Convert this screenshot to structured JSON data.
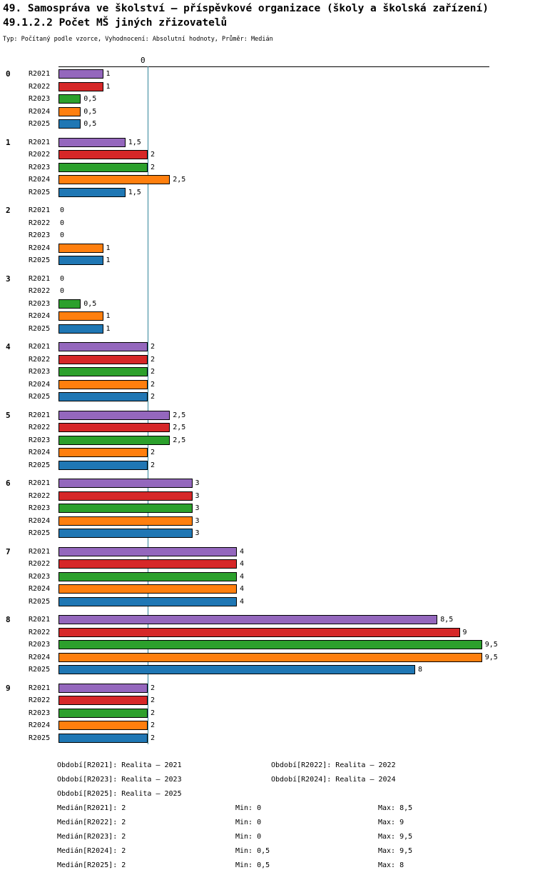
{
  "header": {
    "title": "49. Samospráva ve školství – příspěvkové organizace (školy a školská zařízení)",
    "subtitle": "49.1.2.2 Počet MŠ jiných zřizovatelů",
    "meta": "Typ: Počítaný podle vzorce, Vyhodnocení: Absolutní hodnoty, Průměr: Medián"
  },
  "chart_data": {
    "type": "bar",
    "orientation": "horizontal",
    "title": "49.1.2.2 Počet MŠ jiných zřizovatelů",
    "categories": [
      "0",
      "1",
      "2",
      "3",
      "4",
      "5",
      "6",
      "7",
      "8",
      "9"
    ],
    "series": [
      {
        "name": "R2021",
        "color": "#9467bd",
        "values": [
          1,
          1.5,
          0,
          0,
          2,
          2.5,
          3,
          4,
          8.5,
          2
        ],
        "labels": [
          "1",
          "1,5",
          "0",
          "0",
          "2",
          "2,5",
          "3",
          "4",
          "8,5",
          "2"
        ]
      },
      {
        "name": "R2022",
        "color": "#d62728",
        "values": [
          1,
          2,
          0,
          0,
          2,
          2.5,
          3,
          4,
          9,
          2
        ],
        "labels": [
          "1",
          "2",
          "0",
          "0",
          "2",
          "2,5",
          "3",
          "4",
          "9",
          "2"
        ]
      },
      {
        "name": "R2023",
        "color": "#2ca02c",
        "values": [
          0.5,
          2,
          0,
          0.5,
          2,
          2.5,
          3,
          4,
          9.5,
          2
        ],
        "labels": [
          "0,5",
          "2",
          "0",
          "0,5",
          "2",
          "2,5",
          "3",
          "4",
          "9,5",
          "2"
        ]
      },
      {
        "name": "R2024",
        "color": "#ff7f0e",
        "values": [
          0.5,
          2.5,
          1,
          1,
          2,
          2,
          3,
          4,
          9.5,
          2
        ],
        "labels": [
          "0,5",
          "2,5",
          "1",
          "1",
          "2",
          "2",
          "3",
          "4",
          "9,5",
          "2"
        ]
      },
      {
        "name": "R2025",
        "color": "#1f77b4",
        "values": [
          0.5,
          1.5,
          1,
          1,
          2,
          2,
          3,
          4,
          8,
          2
        ],
        "labels": [
          "0,5",
          "1,5",
          "1",
          "1",
          "2",
          "2",
          "3",
          "4",
          "8",
          "2"
        ]
      }
    ],
    "axis_top_label": "0",
    "median_line": {
      "value": 2,
      "color": "#31849b"
    },
    "xlim": [
      0,
      9.66
    ],
    "grid": false,
    "legend_position": "none"
  },
  "footer": {
    "periods": [
      "Období[R2021]: Realita – 2021",
      "Období[R2022]: Realita – 2022",
      "Období[R2023]: Realita – 2023",
      "Období[R2024]: Realita – 2024",
      "Období[R2025]: Realita – 2025"
    ],
    "stats": [
      {
        "median": "Medián[R2021]: 2",
        "min": "Min: 0",
        "max": "Max: 8,5"
      },
      {
        "median": "Medián[R2022]: 2",
        "min": "Min: 0",
        "max": "Max: 9"
      },
      {
        "median": "Medián[R2023]: 2",
        "min": "Min: 0",
        "max": "Max: 9,5"
      },
      {
        "median": "Medián[R2024]: 2",
        "min": "Min: 0,5",
        "max": "Max: 9,5"
      },
      {
        "median": "Medián[R2025]: 2",
        "min": "Min: 0,5",
        "max": "Max: 8"
      }
    ]
  }
}
